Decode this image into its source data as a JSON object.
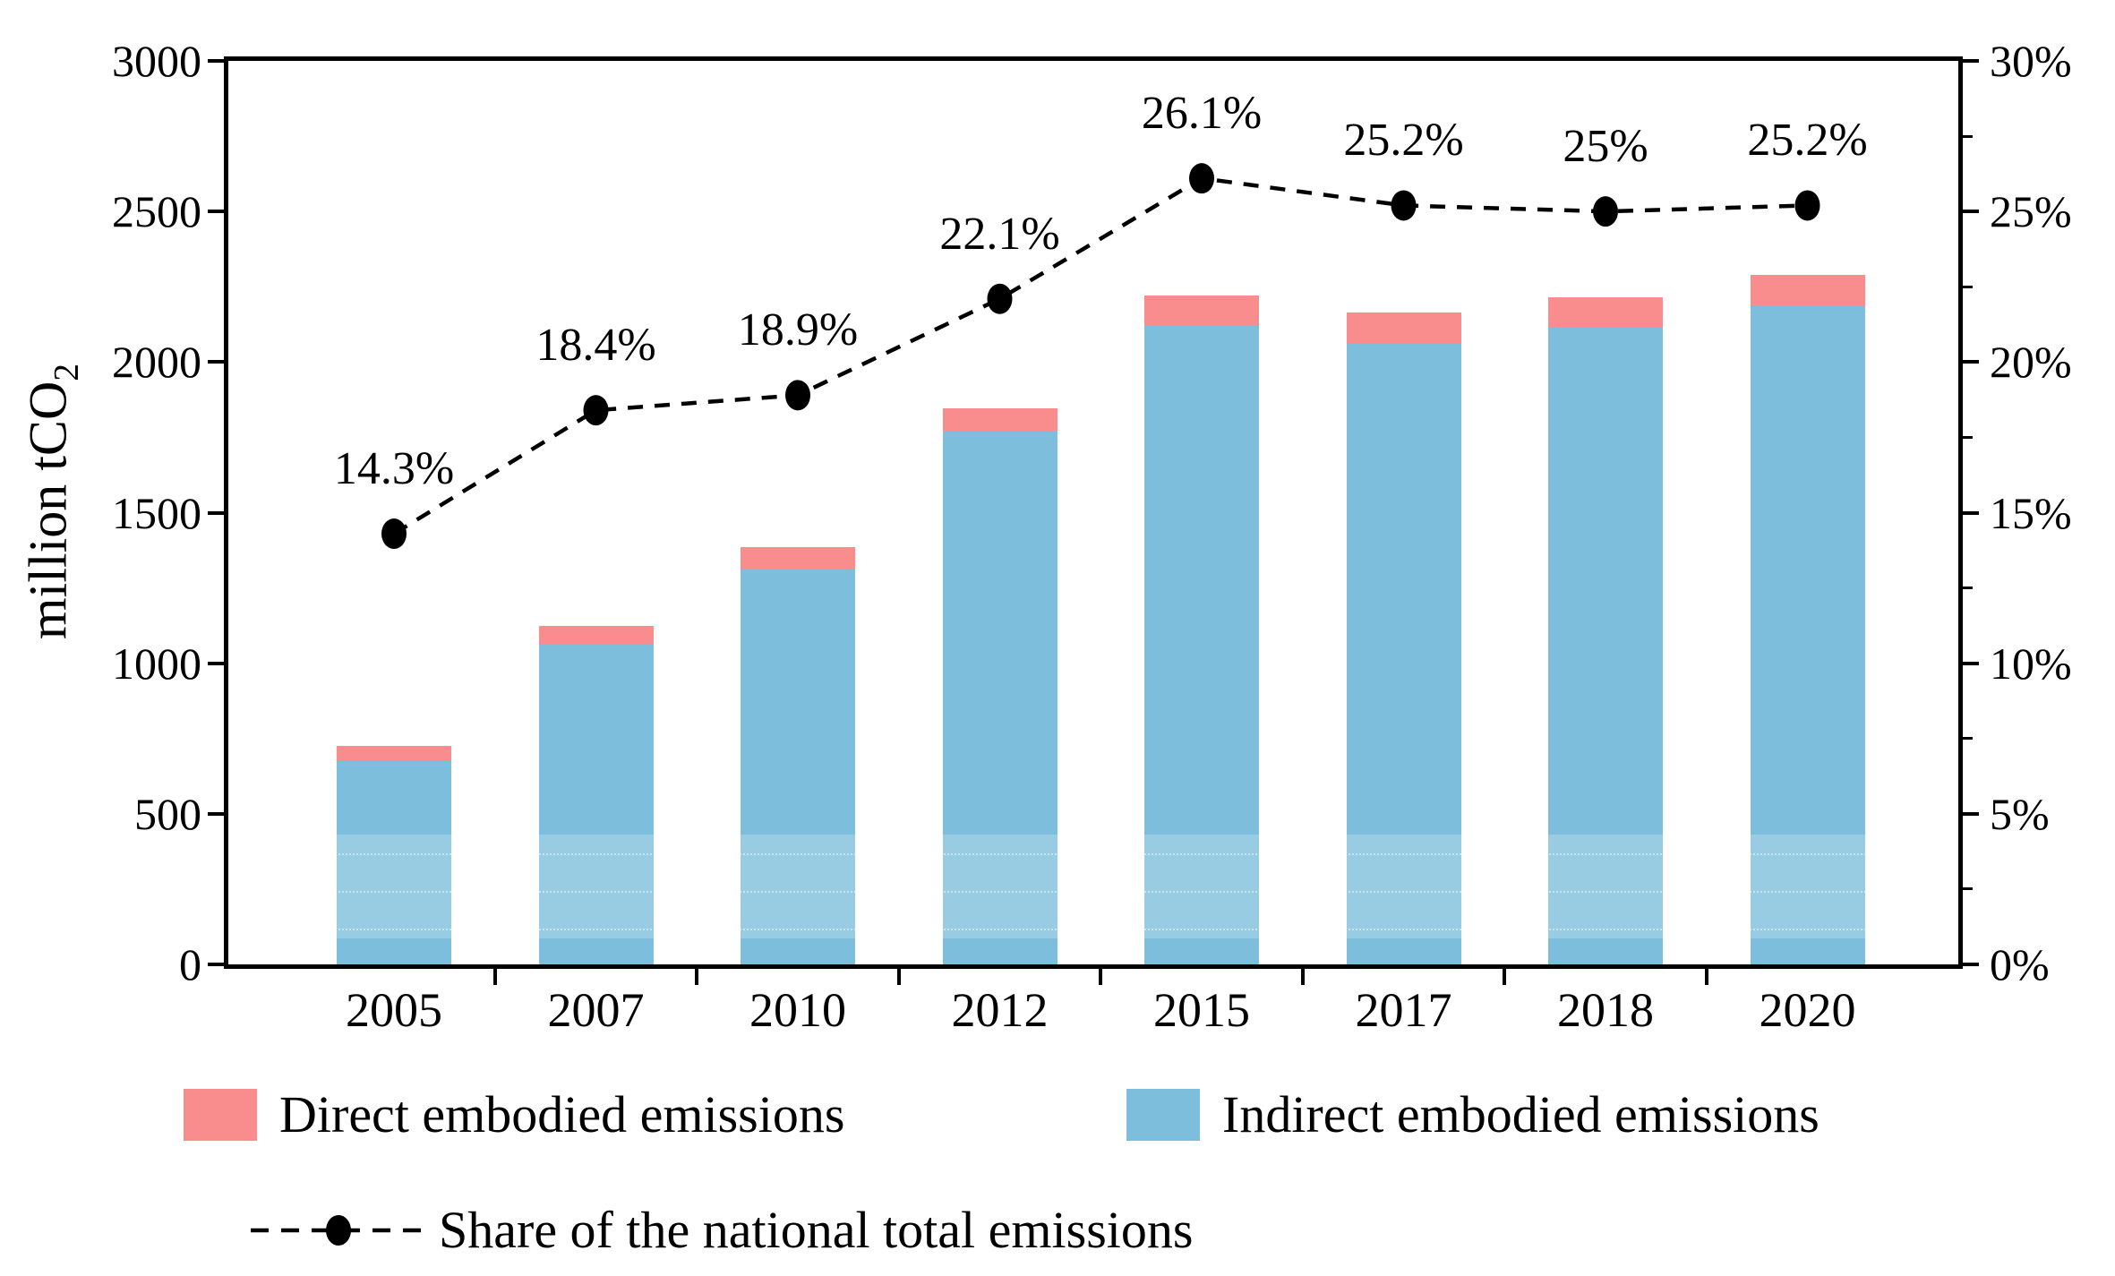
{
  "chart_data": {
    "type": "bar",
    "subtype": "stacked-bars-with-line-overlay",
    "categories": [
      "2005",
      "2007",
      "2010",
      "2012",
      "2015",
      "2017",
      "2018",
      "2020"
    ],
    "stacked_series": [
      {
        "name": "Indirect embodied emissions",
        "color": "#7CBEDC",
        "values": [
          675,
          1065,
          1315,
          1770,
          2120,
          2060,
          2115,
          2185
        ]
      },
      {
        "name": "Direct embodied emissions",
        "color": "#F98C8C",
        "values": [
          50,
          60,
          70,
          75,
          100,
          105,
          100,
          105
        ]
      }
    ],
    "line_series": {
      "name": "Share of the national total emissions",
      "color": "#000000",
      "style": "dashed-with-dot-markers",
      "values": [
        14.3,
        18.4,
        18.9,
        22.1,
        26.1,
        25.2,
        25.0,
        25.2
      ],
      "labels": [
        "14.3%",
        "18.4%",
        "18.9%",
        "22.1%",
        "26.1%",
        "25.2%",
        "25%",
        "25.2%"
      ]
    },
    "left_axis": {
      "label_main": "million tCO",
      "label_sub": "2",
      "min": 0,
      "max": 3000,
      "ticks": [
        "0",
        "500",
        "1000",
        "1500",
        "2000",
        "2500",
        "3000"
      ]
    },
    "right_axis": {
      "min": 0,
      "max": 30,
      "ticks": [
        "0%",
        "5%",
        "10%",
        "15%",
        "20%",
        "25%",
        "30%"
      ],
      "has_minor_ticks": true
    },
    "layout": {
      "grid": false,
      "frame": true,
      "legend_position": "below-chart"
    }
  }
}
